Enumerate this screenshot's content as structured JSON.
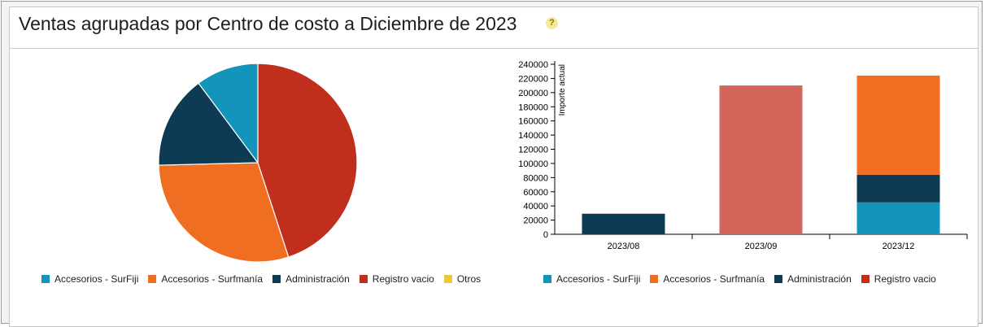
{
  "header": {
    "title": "Ventas agrupadas por Centro de costo a Diciembre de 2023",
    "help_label": "?"
  },
  "colors": {
    "Accesorios - SurFiji": "#1395bb",
    "Accesorios - Surfmanía": "#f06e22",
    "Administracion": "#0d3b54",
    "Registro vacio": "#c02e1e",
    "Otros": "#ecc93b",
    "bar_registro": "#d3655a"
  },
  "chart_data": [
    {
      "type": "pie",
      "series": [
        {
          "name": "Accesorios - SurFiji",
          "value": 10.2
        },
        {
          "name": "Accesorios - Surfmanía",
          "value": 29.6
        },
        {
          "name": "Administracion",
          "value": 15.2
        },
        {
          "name": "Registro vacio",
          "value": 45.0
        },
        {
          "name": "Otros",
          "value": 0
        }
      ],
      "legend": [
        "Accesorios - SurFiji",
        "Accesorios - Surfmanía",
        "Administracion",
        "Registro vacio",
        "Otros"
      ],
      "legend_position": "bottom"
    },
    {
      "type": "bar",
      "stacked": true,
      "categories": [
        "2023/08",
        "2023/09",
        "2023/12"
      ],
      "series": [
        {
          "name": "Accesorios - SurFiji",
          "values": [
            0,
            0,
            45000
          ]
        },
        {
          "name": "Administracion",
          "values": [
            29000,
            0,
            39000
          ]
        },
        {
          "name": "Registro vacio",
          "values": [
            0,
            210000,
            0
          ]
        },
        {
          "name": "Accesorios - Surfmanía",
          "values": [
            0,
            0,
            140000
          ]
        }
      ],
      "ylabel": "Importe actual",
      "ylim": [
        0,
        240000
      ],
      "yticks": [
        0,
        20000,
        40000,
        60000,
        80000,
        100000,
        120000,
        140000,
        160000,
        180000,
        200000,
        220000,
        240000
      ],
      "legend": [
        "Accesorios - SurFiji",
        "Accesorios - Surfmanía",
        "Administracion",
        "Registro vacio"
      ],
      "legend_position": "bottom"
    }
  ],
  "legend_labels": {
    "surfiji": "Accesorios - SurFiji",
    "surfmania": "Accesorios - Surfmanía",
    "admin": "Administración",
    "registro": "Registro vacio",
    "otros": "Otros"
  }
}
